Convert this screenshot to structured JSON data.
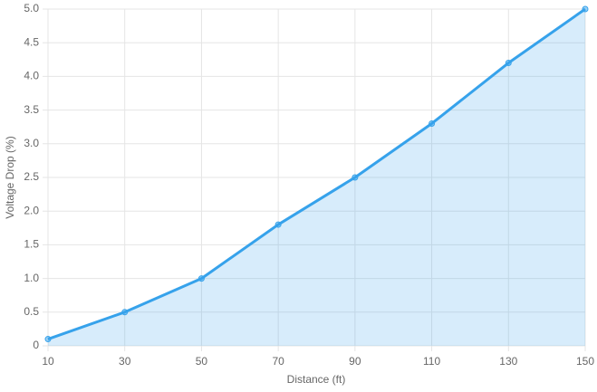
{
  "chart_data": {
    "type": "line",
    "x_label": "Distance (ft)",
    "y_label": "Voltage Drop (%)",
    "x": [
      10,
      30,
      50,
      70,
      90,
      110,
      130,
      150
    ],
    "series": [
      {
        "color": "#36a2eb",
        "values": [
          0.1,
          0.5,
          1.0,
          1.8,
          2.5,
          3.3,
          4.2,
          5.0
        ]
      }
    ],
    "fill": true,
    "grid": true,
    "xlim": [
      10,
      150
    ],
    "xticks": [
      10,
      30,
      50,
      70,
      90,
      110,
      130,
      150
    ],
    "ylim": [
      0,
      5
    ],
    "yticks": [
      0,
      0.5,
      {
        "value": 1,
        "label": "1.0"
      },
      1.5,
      {
        "value": 2,
        "label": "2.0"
      },
      2.5,
      {
        "value": 3,
        "label": "3.0"
      },
      3.5,
      {
        "value": 4,
        "label": "4.0"
      },
      4.5,
      {
        "value": 5,
        "label": "5.0"
      }
    ]
  }
}
